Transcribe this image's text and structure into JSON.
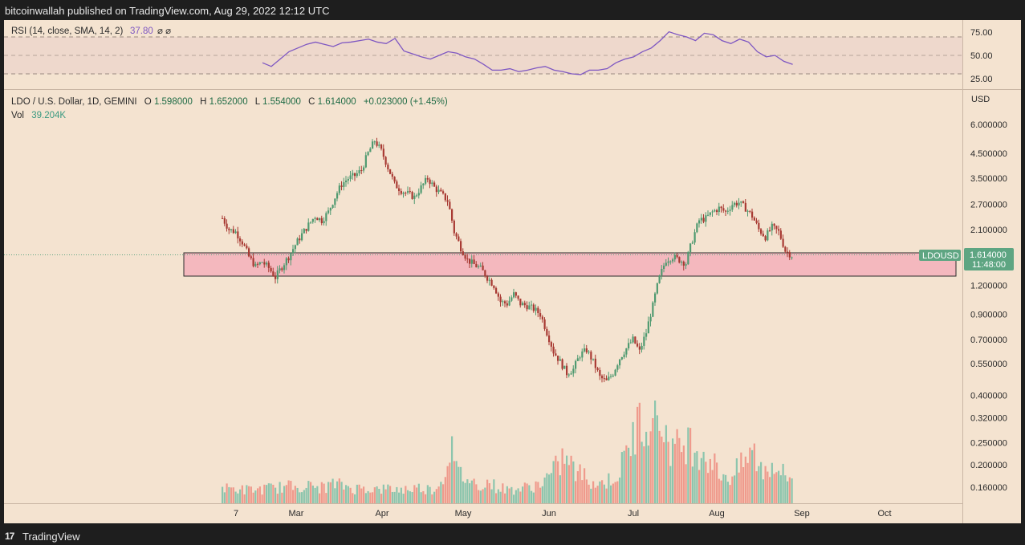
{
  "header": {
    "published": "bitcoinwallah published on TradingView.com, Aug 29, 2022 12:12 UTC"
  },
  "footer": {
    "brand_mark": "17",
    "brand": "TradingView"
  },
  "rsi_pane": {
    "label": "RSI (14, close, SMA, 14, 2)",
    "value": "37.80",
    "extras": "⌀ ⌀",
    "ticks": [
      "75.00",
      "50.00",
      "25.00"
    ]
  },
  "main_pane": {
    "symbol": "LDO / U.S. Dollar, 1D, GEMINI",
    "o_label": "O",
    "o": "1.598000",
    "h_label": "H",
    "h": "1.652000",
    "l_label": "L",
    "l": "1.554000",
    "c_label": "C",
    "c": "1.614000",
    "change": "+0.023000 (+1.45%)",
    "vol_label": "Vol",
    "vol": "39.204K",
    "currency": "USD",
    "price_tag": "LDOUSD",
    "last_price": "1.614000",
    "countdown": "11:48:00"
  },
  "colors": {
    "background": "#f4e3d0",
    "up": "#4f9a70",
    "down": "#a83a33",
    "vol_up": "#8cc5ad",
    "vol_down": "#ef9a8c",
    "rsi_line": "#7e57c2",
    "zone_fill": "#f4b8be",
    "label_bg": "#5ea582"
  },
  "chart_data": {
    "type": "candlestick",
    "scale": "log",
    "y_ticks": [
      "6.000000",
      "4.500000",
      "3.500000",
      "2.700000",
      "2.100000",
      "1.200000",
      "0.900000",
      "0.700000",
      "0.550000",
      "0.400000",
      "0.320000",
      "0.250000",
      "0.200000",
      "0.160000"
    ],
    "x_ticks": [
      "7",
      "Mar",
      "Apr",
      "May",
      "Jun",
      "Jul",
      "Aug",
      "Sep",
      "Oct"
    ],
    "support_zone": [
      1.26,
      1.63
    ],
    "close_path": [
      [
        0,
        2.35
      ],
      [
        3,
        2.1
      ],
      [
        6,
        2.05
      ],
      [
        9,
        1.85
      ],
      [
        12,
        1.6
      ],
      [
        15,
        1.45
      ],
      [
        18,
        1.52
      ],
      [
        21,
        1.43
      ],
      [
        24,
        1.3
      ],
      [
        27,
        1.45
      ],
      [
        30,
        1.6
      ],
      [
        33,
        1.8
      ],
      [
        36,
        2.0
      ],
      [
        39,
        2.2
      ],
      [
        42,
        2.4
      ],
      [
        45,
        2.3
      ],
      [
        48,
        2.5
      ],
      [
        51,
        2.9
      ],
      [
        54,
        3.3
      ],
      [
        57,
        3.5
      ],
      [
        60,
        3.6
      ],
      [
        63,
        3.8
      ],
      [
        66,
        4.5
      ],
      [
        69,
        5.1
      ],
      [
        72,
        4.6
      ],
      [
        75,
        3.9
      ],
      [
        78,
        3.3
      ],
      [
        81,
        3.1
      ],
      [
        84,
        3.0
      ],
      [
        87,
        2.9
      ],
      [
        90,
        3.2
      ],
      [
        93,
        3.5
      ],
      [
        96,
        3.2
      ],
      [
        99,
        3.0
      ],
      [
        102,
        2.8
      ],
      [
        105,
        2.05
      ],
      [
        108,
        1.75
      ],
      [
        111,
        1.55
      ],
      [
        114,
        1.48
      ],
      [
        117,
        1.42
      ],
      [
        120,
        1.3
      ],
      [
        123,
        1.2
      ],
      [
        126,
        1.02
      ],
      [
        129,
        1.0
      ],
      [
        132,
        1.1
      ],
      [
        135,
        1.0
      ],
      [
        138,
        0.98
      ],
      [
        141,
        0.95
      ],
      [
        144,
        0.9
      ],
      [
        147,
        0.75
      ],
      [
        150,
        0.62
      ],
      [
        153,
        0.56
      ],
      [
        156,
        0.5
      ],
      [
        159,
        0.52
      ],
      [
        162,
        0.6
      ],
      [
        165,
        0.63
      ],
      [
        168,
        0.56
      ],
      [
        171,
        0.48
      ],
      [
        174,
        0.46
      ],
      [
        177,
        0.5
      ],
      [
        180,
        0.58
      ],
      [
        183,
        0.64
      ],
      [
        186,
        0.7
      ],
      [
        189,
        0.62
      ],
      [
        192,
        0.75
      ],
      [
        195,
        0.98
      ],
      [
        198,
        1.3
      ],
      [
        201,
        1.55
      ],
      [
        204,
        1.6
      ],
      [
        207,
        1.55
      ],
      [
        210,
        1.5
      ],
      [
        213,
        1.9
      ],
      [
        216,
        2.3
      ],
      [
        219,
        2.35
      ],
      [
        222,
        2.5
      ],
      [
        225,
        2.6
      ],
      [
        228,
        2.5
      ],
      [
        231,
        2.7
      ],
      [
        234,
        2.75
      ],
      [
        237,
        2.6
      ],
      [
        240,
        2.4
      ],
      [
        243,
        2.1
      ],
      [
        246,
        1.95
      ],
      [
        249,
        2.15
      ],
      [
        252,
        2.05
      ],
      [
        255,
        1.7
      ],
      [
        258,
        1.62
      ]
    ],
    "rsi_path": [
      [
        0,
        40
      ],
      [
        3,
        35
      ],
      [
        6,
        45
      ],
      [
        9,
        55
      ],
      [
        12,
        60
      ],
      [
        15,
        65
      ],
      [
        18,
        68
      ],
      [
        21,
        65
      ],
      [
        24,
        62
      ],
      [
        27,
        67
      ],
      [
        30,
        68
      ],
      [
        33,
        70
      ],
      [
        36,
        72
      ],
      [
        39,
        68
      ],
      [
        42,
        66
      ],
      [
        45,
        73
      ],
      [
        48,
        56
      ],
      [
        51,
        52
      ],
      [
        54,
        48
      ],
      [
        57,
        45
      ],
      [
        60,
        50
      ],
      [
        63,
        55
      ],
      [
        66,
        53
      ],
      [
        69,
        48
      ],
      [
        72,
        45
      ],
      [
        75,
        38
      ],
      [
        78,
        30
      ],
      [
        81,
        30
      ],
      [
        84,
        32
      ],
      [
        87,
        28
      ],
      [
        90,
        30
      ],
      [
        93,
        33
      ],
      [
        96,
        35
      ],
      [
        99,
        30
      ],
      [
        102,
        28
      ],
      [
        105,
        25
      ],
      [
        108,
        24
      ],
      [
        111,
        30
      ],
      [
        114,
        30
      ],
      [
        117,
        32
      ],
      [
        120,
        40
      ],
      [
        123,
        45
      ],
      [
        126,
        48
      ],
      [
        129,
        55
      ],
      [
        132,
        60
      ],
      [
        135,
        70
      ],
      [
        138,
        82
      ],
      [
        141,
        78
      ],
      [
        144,
        75
      ],
      [
        147,
        70
      ],
      [
        150,
        80
      ],
      [
        153,
        78
      ],
      [
        156,
        70
      ],
      [
        159,
        66
      ],
      [
        162,
        72
      ],
      [
        165,
        68
      ],
      [
        168,
        55
      ],
      [
        171,
        48
      ],
      [
        174,
        50
      ],
      [
        177,
        42
      ],
      [
        180,
        37.8
      ]
    ],
    "volume_path": [
      [
        0,
        0.14
      ],
      [
        5,
        0.14
      ],
      [
        10,
        0.13
      ],
      [
        15,
        0.13
      ],
      [
        20,
        0.14
      ],
      [
        25,
        0.15
      ],
      [
        30,
        0.16
      ],
      [
        35,
        0.17
      ],
      [
        40,
        0.16
      ],
      [
        45,
        0.15
      ],
      [
        50,
        0.18
      ],
      [
        55,
        0.17
      ],
      [
        60,
        0.14
      ],
      [
        65,
        0.15
      ],
      [
        70,
        0.13
      ],
      [
        75,
        0.14
      ],
      [
        80,
        0.13
      ],
      [
        85,
        0.14
      ],
      [
        90,
        0.15
      ],
      [
        95,
        0.13
      ],
      [
        100,
        0.22
      ],
      [
        103,
        0.6
      ],
      [
        106,
        0.3
      ],
      [
        110,
        0.25
      ],
      [
        115,
        0.18
      ],
      [
        120,
        0.2
      ],
      [
        125,
        0.15
      ],
      [
        130,
        0.13
      ],
      [
        135,
        0.14
      ],
      [
        140,
        0.16
      ],
      [
        145,
        0.2
      ],
      [
        150,
        0.3
      ],
      [
        155,
        0.45
      ],
      [
        160,
        0.3
      ],
      [
        165,
        0.25
      ],
      [
        170,
        0.18
      ],
      [
        175,
        0.22
      ],
      [
        180,
        0.3
      ],
      [
        185,
        0.6
      ],
      [
        190,
        0.8
      ],
      [
        195,
        1.0
      ],
      [
        200,
        0.7
      ],
      [
        205,
        0.5
      ],
      [
        210,
        0.6
      ],
      [
        215,
        0.55
      ],
      [
        220,
        0.45
      ],
      [
        225,
        0.3
      ],
      [
        230,
        0.25
      ],
      [
        235,
        0.35
      ],
      [
        240,
        0.5
      ],
      [
        245,
        0.3
      ],
      [
        250,
        0.4
      ],
      [
        255,
        0.25
      ]
    ]
  }
}
